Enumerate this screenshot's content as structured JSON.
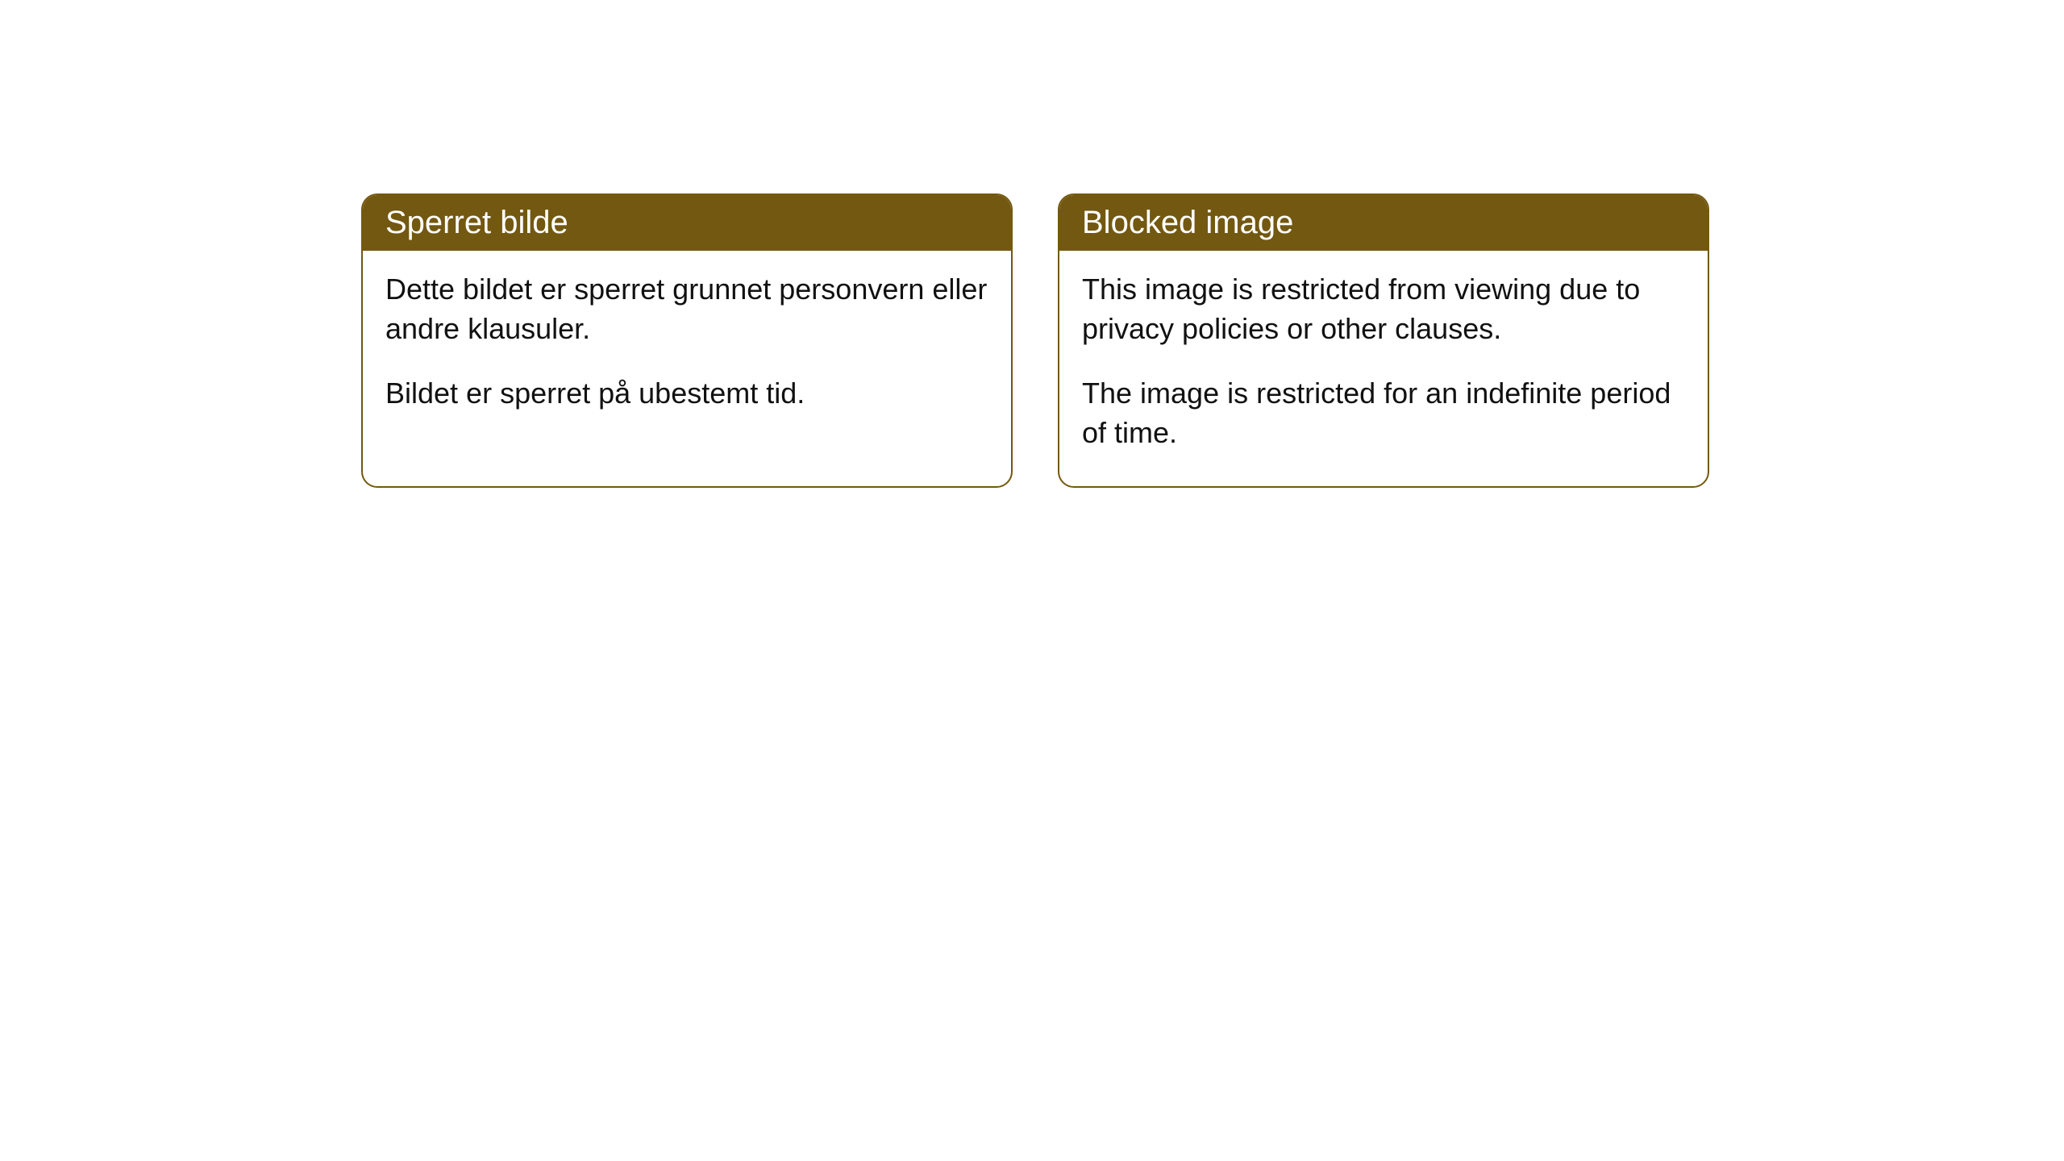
{
  "cards": [
    {
      "title": "Sperret bilde",
      "paragraph1": "Dette bildet er sperret grunnet personvern eller andre klausuler.",
      "paragraph2": "Bildet er sperret på ubestemt tid."
    },
    {
      "title": "Blocked image",
      "paragraph1": "This image is restricted from viewing due to privacy policies or other clauses.",
      "paragraph2": "The image is restricted for an indefinite period of time."
    }
  ],
  "style": {
    "header_bg_color": "#735811",
    "header_text_color": "#ffffff",
    "border_color": "#735811",
    "body_text_color": "#111111",
    "background_color": "#ffffff",
    "border_radius": 20,
    "title_fontsize": 40,
    "body_fontsize": 36
  }
}
